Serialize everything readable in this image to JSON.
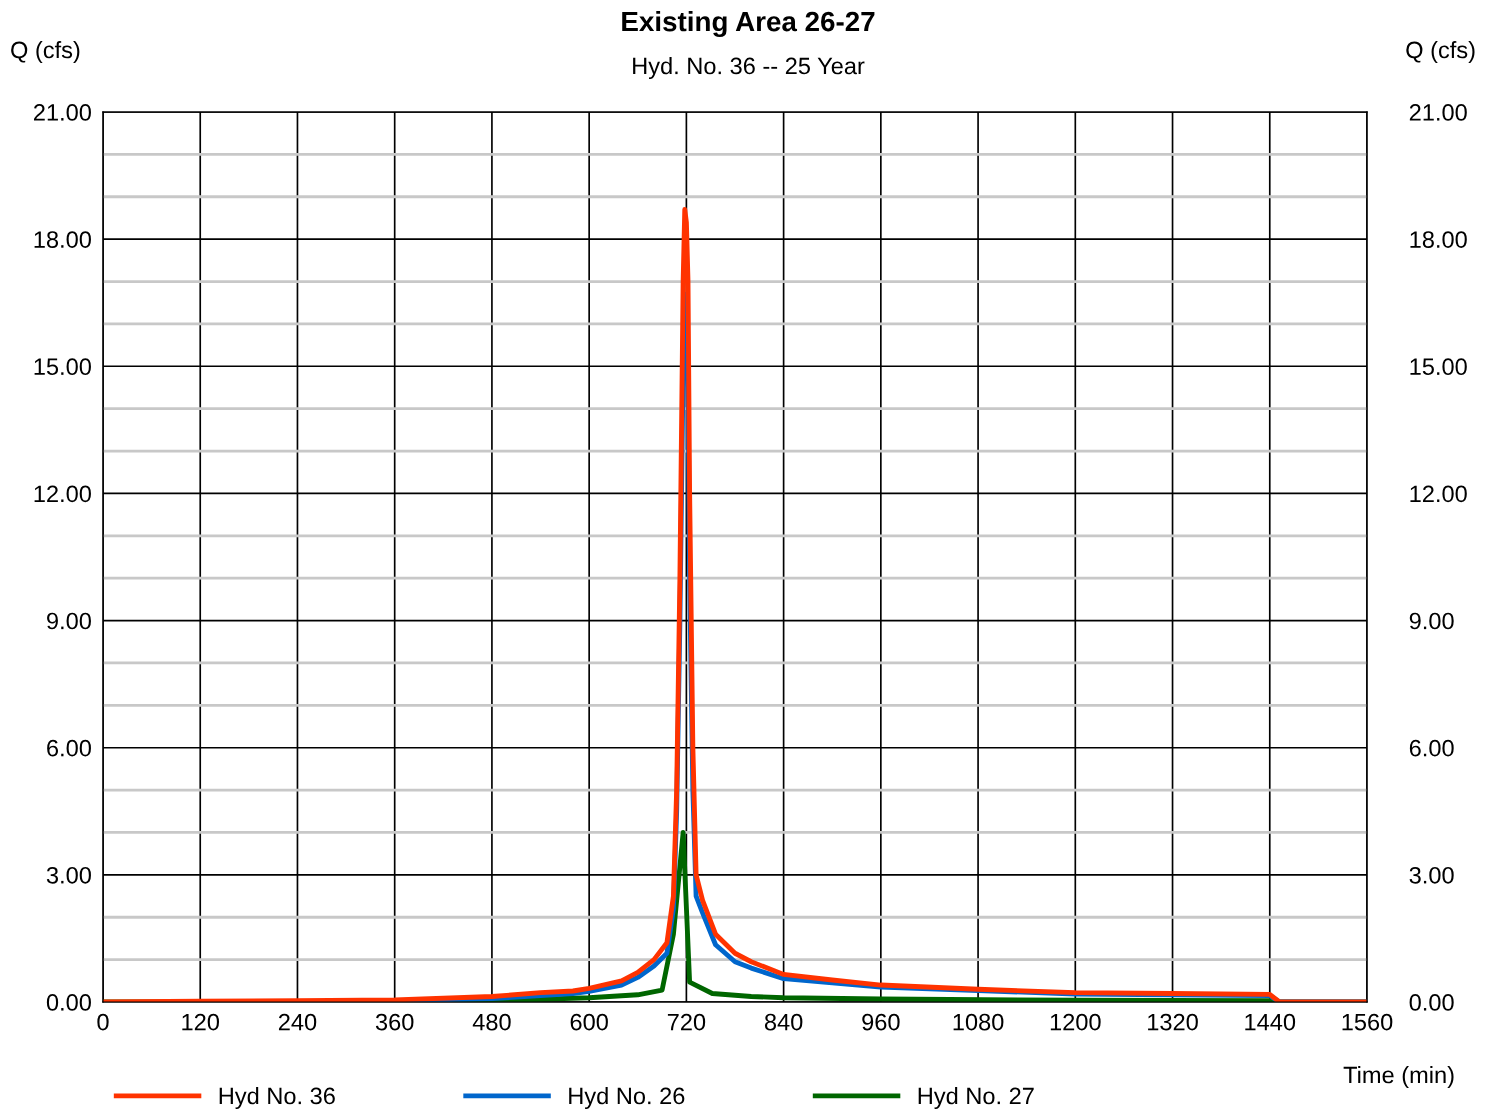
{
  "chart_data": {
    "type": "line",
    "title": "Existing Area 26-27",
    "subtitle": "Hyd. No. 36 -- 25 Year",
    "xlabel": "Time (min)",
    "ylabel": "Q (cfs)",
    "y2label": "Q (cfs)",
    "xlim": [
      0,
      1560
    ],
    "xticks": [
      0,
      120,
      240,
      360,
      480,
      600,
      720,
      840,
      960,
      1080,
      1200,
      1320,
      1440,
      1560
    ],
    "ylim": [
      0,
      21
    ],
    "yticks": [
      {
        "value": 0,
        "label": "0.00"
      },
      {
        "value": 1,
        "label": null
      },
      {
        "value": 2,
        "label": null
      },
      {
        "value": 3,
        "label": "3.00"
      },
      {
        "value": 4,
        "label": null
      },
      {
        "value": 5,
        "label": null
      },
      {
        "value": 6,
        "label": "6.00"
      },
      {
        "value": 7,
        "label": null
      },
      {
        "value": 8,
        "label": null
      },
      {
        "value": 9,
        "label": "9.00"
      },
      {
        "value": 10,
        "label": null
      },
      {
        "value": 11,
        "label": null
      },
      {
        "value": 12,
        "label": "12.00"
      },
      {
        "value": 13,
        "label": null
      },
      {
        "value": 14,
        "label": null
      },
      {
        "value": 15,
        "label": "15.00"
      },
      {
        "value": 16,
        "label": null
      },
      {
        "value": 17,
        "label": null
      },
      {
        "value": 18,
        "label": "18.00"
      },
      {
        "value": 19,
        "label": null
      },
      {
        "value": 20,
        "label": null
      },
      {
        "value": 21,
        "label": "21.00"
      }
    ],
    "y2lim": [
      0,
      21
    ],
    "y2ticks": [
      {
        "value": 0,
        "label": "0.00"
      },
      {
        "value": 3,
        "label": "3.00"
      },
      {
        "value": 6,
        "label": "6.00"
      },
      {
        "value": 9,
        "label": "9.00"
      },
      {
        "value": 12,
        "label": "12.00"
      },
      {
        "value": 15,
        "label": "15.00"
      },
      {
        "value": 18,
        "label": "18.00"
      },
      {
        "value": 21,
        "label": "21.00"
      }
    ],
    "grid": true,
    "legend": "bottom",
    "marker": "none",
    "line_style": "solid",
    "series": [
      {
        "name": "Hyd No. 36",
        "color": "#ff3300",
        "x": [
          0,
          120,
          240,
          360,
          480,
          540,
          580,
          600,
          640,
          660,
          680,
          696,
          704,
          708,
          712,
          716,
          718,
          720,
          722,
          724,
          728,
          732,
          740,
          756,
          780,
          800,
          840,
          900,
          960,
          1080,
          1200,
          1320,
          1440,
          1452,
          1560
        ],
        "values": [
          0,
          0.02,
          0.03,
          0.05,
          0.13,
          0.22,
          0.26,
          0.32,
          0.5,
          0.7,
          1.0,
          1.4,
          2.5,
          5,
          10,
          17,
          18.7,
          18.4,
          17,
          12,
          6,
          3.0,
          2.4,
          1.6,
          1.15,
          0.95,
          0.65,
          0.52,
          0.4,
          0.3,
          0.22,
          0.2,
          0.18,
          0,
          0
        ]
      },
      {
        "name": "Hyd No. 26",
        "color": "#0066cc",
        "x": [
          360,
          480,
          540,
          580,
          600,
          640,
          660,
          680,
          696,
          704,
          708,
          712,
          716,
          718,
          720,
          722,
          724,
          728,
          732,
          740,
          756,
          780,
          800,
          840,
          900,
          960,
          1080,
          1200,
          1320,
          1440,
          1452,
          1560
        ],
        "values": [
          0.03,
          0.08,
          0.15,
          0.2,
          0.25,
          0.4,
          0.58,
          0.85,
          1.15,
          2.2,
          4.5,
          9,
          15,
          16.7,
          16.2,
          14.5,
          10,
          5,
          2.5,
          2.1,
          1.35,
          0.95,
          0.8,
          0.55,
          0.45,
          0.35,
          0.27,
          0.19,
          0.17,
          0.15,
          0,
          0
        ]
      },
      {
        "name": "Hyd No. 27",
        "color": "#006600",
        "x": [
          0,
          360,
          480,
          600,
          660,
          690,
          704,
          716,
          724,
          752,
          800,
          840,
          960,
          1200,
          1440,
          1452,
          1560
        ],
        "values": [
          0,
          0,
          0.03,
          0.1,
          0.17,
          0.28,
          1.6,
          4.0,
          0.47,
          0.2,
          0.13,
          0.1,
          0.07,
          0.04,
          0.03,
          0,
          0
        ]
      }
    ]
  }
}
